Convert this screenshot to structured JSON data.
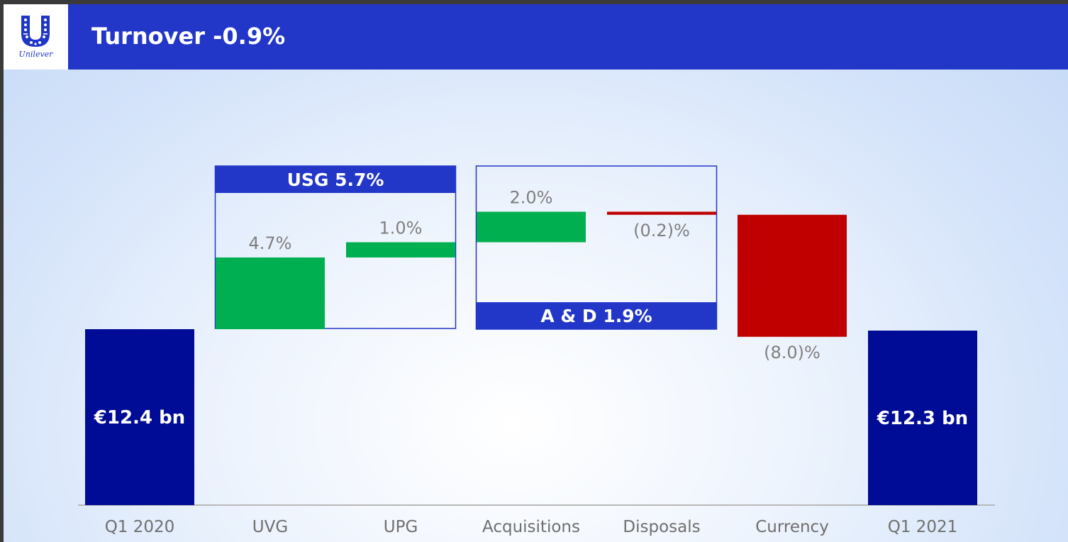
{
  "header": {
    "title": "Turnover -0.9%",
    "logo_text": "Unilever",
    "logo_icon": "unilever-u-icon"
  },
  "colors": {
    "header": "#2236c8",
    "total": "#000c96",
    "positive": "#00b050",
    "negative": "#c00000",
    "band": "#2236c8",
    "value_label": "#7f7f7f",
    "category_label": "#6f6f6f"
  },
  "chart_data": {
    "type": "bar",
    "subtype": "waterfall",
    "title": "Turnover -0.9%",
    "categories": [
      "Q1 2020",
      "UVG",
      "UPG",
      "Acquisitions",
      "Disposals",
      "Currency",
      "Q1 2021"
    ],
    "items": [
      {
        "category": "Q1 2020",
        "kind": "total",
        "value": 12.4,
        "label": "€12.4 bn"
      },
      {
        "category": "UVG",
        "kind": "delta",
        "value": 4.7,
        "label": "4.7%"
      },
      {
        "category": "UPG",
        "kind": "delta",
        "value": 1.0,
        "label": "1.0%"
      },
      {
        "category": "Acquisitions",
        "kind": "delta",
        "value": 2.0,
        "label": "2.0%"
      },
      {
        "category": "Disposals",
        "kind": "delta",
        "value": -0.2,
        "label": "(0.2)%"
      },
      {
        "category": "Currency",
        "kind": "delta",
        "value": -8.0,
        "label": "(8.0)%"
      },
      {
        "category": "Q1 2021",
        "kind": "total",
        "value": 12.3,
        "label": "€12.3 bn"
      }
    ],
    "groups": [
      {
        "label": "USG 5.7%",
        "members": [
          "UVG",
          "UPG"
        ],
        "band": "top"
      },
      {
        "label": "A & D 1.9%",
        "members": [
          "Acquisitions",
          "Disposals"
        ],
        "band": "bottom"
      }
    ],
    "xlabel": "",
    "ylabel": "",
    "legend": "none",
    "grid": false
  }
}
